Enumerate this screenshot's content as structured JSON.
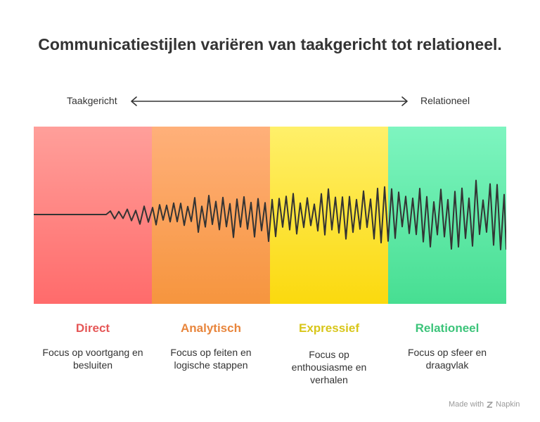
{
  "title": "Communicatiestijlen variëren van taakgericht tot relationeel.",
  "axis": {
    "left_label": "Taakgericht",
    "right_label": "Relationeel"
  },
  "styles": [
    {
      "name": "Direct",
      "description": "Focus op voortgang en besluiten",
      "color": "#e55757"
    },
    {
      "name": "Analytisch",
      "description": "Focus op feiten en logische stappen",
      "color": "#e8853c"
    },
    {
      "name": "Expressief",
      "description": "Focus op enthousiasme en verhalen",
      "color": "#d8c61a"
    },
    {
      "name": "Relationeel",
      "description": "Focus op sfeer en draagvlak",
      "color": "#3cc47a"
    }
  ],
  "credit": {
    "text": "Made with",
    "brand": "Napkin",
    "icon": "napkin-logo-icon"
  },
  "icons": {
    "axis_arrow": "double-arrow-icon"
  },
  "wave": {
    "description_icon": "waveform-icon",
    "stroke_color": "#333333"
  }
}
